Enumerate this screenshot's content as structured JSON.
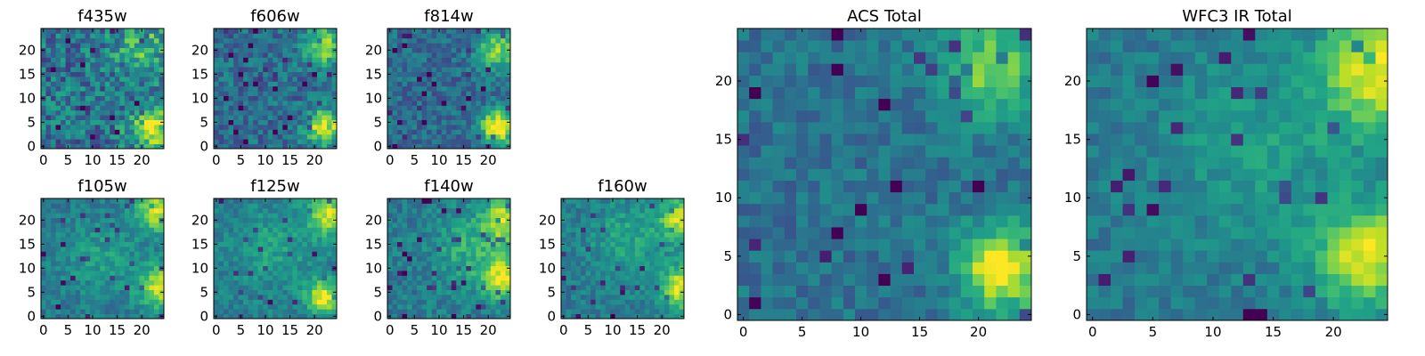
{
  "chart_data": [
    {
      "type": "heatmap",
      "title": "f435w",
      "x_ticks": [
        "0",
        "5",
        "10",
        "15",
        "20"
      ],
      "y_ticks": [
        "0",
        "5",
        "10",
        "15",
        "20"
      ],
      "grid_size": 25,
      "xlim": [
        0,
        25
      ],
      "ylim": [
        0,
        25
      ],
      "colormap": "viridis",
      "hotspots": [
        {
          "x": 22,
          "y": 4,
          "sigma": 3,
          "amp": 0.6
        },
        {
          "x": 20,
          "y": 21,
          "sigma": 4,
          "amp": 0.3
        }
      ],
      "base": 0.38,
      "noise": 0.45,
      "seed": 11
    },
    {
      "type": "heatmap",
      "title": "f606w",
      "x_ticks": [
        "0",
        "5",
        "10",
        "15",
        "20"
      ],
      "y_ticks": [
        "0",
        "5",
        "10",
        "15",
        "20"
      ],
      "grid_size": 25,
      "xlim": [
        0,
        25
      ],
      "ylim": [
        0,
        25
      ],
      "colormap": "viridis",
      "hotspots": [
        {
          "x": 22,
          "y": 4,
          "sigma": 2.5,
          "amp": 0.65
        },
        {
          "x": 22,
          "y": 21,
          "sigma": 3,
          "amp": 0.45
        }
      ],
      "base": 0.36,
      "noise": 0.32,
      "seed": 23
    },
    {
      "type": "heatmap",
      "title": "f814w",
      "x_ticks": [
        "0",
        "5",
        "10",
        "15",
        "20"
      ],
      "y_ticks": [
        "0",
        "5",
        "10",
        "15",
        "20"
      ],
      "grid_size": 25,
      "xlim": [
        0,
        25
      ],
      "ylim": [
        0,
        25
      ],
      "colormap": "viridis",
      "hotspots": [
        {
          "x": 22,
          "y": 4,
          "sigma": 2.5,
          "amp": 0.7
        },
        {
          "x": 22,
          "y": 20,
          "sigma": 3,
          "amp": 0.45
        }
      ],
      "base": 0.35,
      "noise": 0.28,
      "seed": 37
    },
    {
      "type": "heatmap",
      "title": "f105w",
      "x_ticks": [
        "0",
        "5",
        "10",
        "15",
        "20"
      ],
      "y_ticks": [
        "0",
        "5",
        "10",
        "15",
        "20"
      ],
      "grid_size": 25,
      "xlim": [
        0,
        25
      ],
      "ylim": [
        0,
        25
      ],
      "colormap": "viridis",
      "hotspots": [
        {
          "x": 24,
          "y": 6,
          "sigma": 3,
          "amp": 0.55
        },
        {
          "x": 23,
          "y": 22,
          "sigma": 3,
          "amp": 0.5
        },
        {
          "x": 12,
          "y": 12,
          "sigma": 6,
          "amp": 0.15
        }
      ],
      "base": 0.4,
      "noise": 0.22,
      "seed": 41
    },
    {
      "type": "heatmap",
      "title": "f125w",
      "x_ticks": [
        "0",
        "5",
        "10",
        "15",
        "20"
      ],
      "y_ticks": [
        "0",
        "5",
        "10",
        "15",
        "20"
      ],
      "grid_size": 25,
      "xlim": [
        0,
        25
      ],
      "ylim": [
        0,
        25
      ],
      "colormap": "viridis",
      "hotspots": [
        {
          "x": 22,
          "y": 4,
          "sigma": 2.5,
          "amp": 0.55
        },
        {
          "x": 23,
          "y": 21,
          "sigma": 3,
          "amp": 0.5
        },
        {
          "x": 12,
          "y": 14,
          "sigma": 6,
          "amp": 0.15
        }
      ],
      "base": 0.42,
      "noise": 0.22,
      "seed": 53
    },
    {
      "type": "heatmap",
      "title": "f140w",
      "x_ticks": [
        "0",
        "5",
        "10",
        "15",
        "20"
      ],
      "y_ticks": [
        "0",
        "5",
        "10",
        "15",
        "20"
      ],
      "grid_size": 25,
      "xlim": [
        0,
        25
      ],
      "ylim": [
        0,
        25
      ],
      "colormap": "viridis",
      "hotspots": [
        {
          "x": 23,
          "y": 8,
          "sigma": 3,
          "amp": 0.55
        },
        {
          "x": 23,
          "y": 20,
          "sigma": 3,
          "amp": 0.5
        },
        {
          "x": 16,
          "y": 14,
          "sigma": 5,
          "amp": 0.2
        }
      ],
      "base": 0.42,
      "noise": 0.24,
      "seed": 67
    },
    {
      "type": "heatmap",
      "title": "f160w",
      "x_ticks": [
        "0",
        "5",
        "10",
        "15",
        "20"
      ],
      "y_ticks": [
        "0",
        "5",
        "10",
        "15",
        "20"
      ],
      "grid_size": 25,
      "xlim": [
        0,
        25
      ],
      "ylim": [
        0,
        25
      ],
      "colormap": "viridis",
      "hotspots": [
        {
          "x": 24,
          "y": 6,
          "sigma": 3,
          "amp": 0.55
        },
        {
          "x": 24,
          "y": 20,
          "sigma": 3,
          "amp": 0.5
        },
        {
          "x": 13,
          "y": 16,
          "sigma": 5,
          "amp": 0.18
        }
      ],
      "base": 0.42,
      "noise": 0.22,
      "seed": 79
    },
    {
      "type": "heatmap",
      "title": "ACS Total",
      "x_ticks": [
        "0",
        "5",
        "10",
        "15",
        "20"
      ],
      "y_ticks": [
        "0",
        "5",
        "10",
        "15",
        "20"
      ],
      "grid_size": 25,
      "xlim": [
        0,
        25
      ],
      "ylim": [
        0,
        25
      ],
      "colormap": "viridis",
      "hotspots": [
        {
          "x": 22,
          "y": 4,
          "sigma": 2.5,
          "amp": 0.65
        },
        {
          "x": 21,
          "y": 21,
          "sigma": 3,
          "amp": 0.42
        }
      ],
      "base": 0.38,
      "noise": 0.22,
      "seed": 89
    },
    {
      "type": "heatmap",
      "title": "WFC3 IR Total",
      "x_ticks": [
        "0",
        "5",
        "10",
        "15",
        "20"
      ],
      "y_ticks": [
        "0",
        "5",
        "10",
        "15",
        "20"
      ],
      "grid_size": 25,
      "xlim": [
        0,
        25
      ],
      "ylim": [
        0,
        25
      ],
      "colormap": "viridis",
      "hotspots": [
        {
          "x": 23,
          "y": 5,
          "sigma": 3,
          "amp": 0.55
        },
        {
          "x": 24,
          "y": 21,
          "sigma": 3.5,
          "amp": 0.55
        },
        {
          "x": 14,
          "y": 14,
          "sigma": 6,
          "amp": 0.15
        }
      ],
      "base": 0.4,
      "noise": 0.18,
      "seed": 97
    }
  ]
}
